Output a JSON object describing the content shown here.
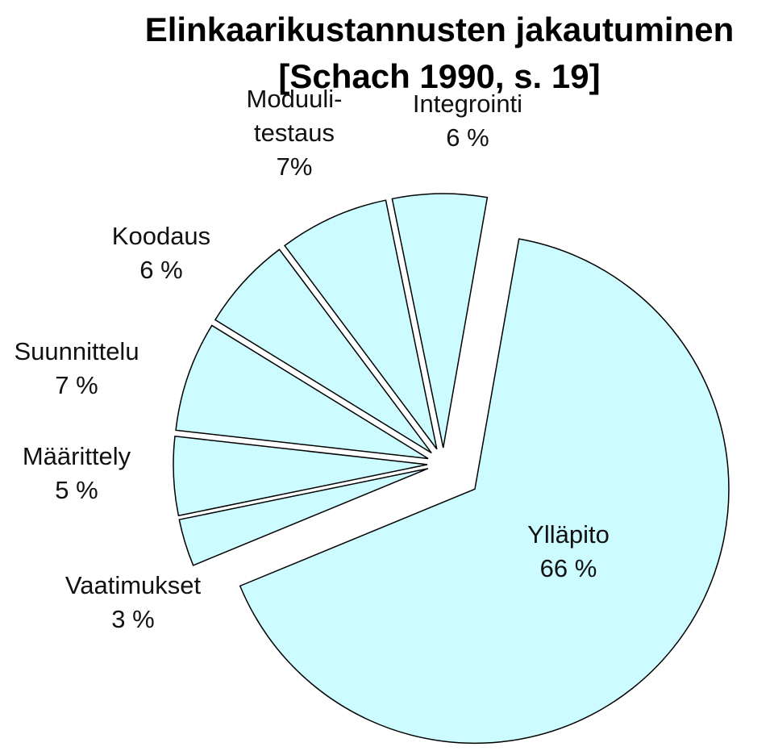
{
  "chart_data": {
    "type": "pie",
    "title": "Elinkaarikustannusten jakautuminen\n[Schach 1990, s. 19]",
    "categories": [
      "Ylläpito",
      "Vaatimukset",
      "Määrittely",
      "Suunnittelu",
      "Koodaus",
      "Moduuli-\ntestaus",
      "Integrointi"
    ],
    "values": [
      66,
      3,
      5,
      7,
      6,
      7,
      6
    ],
    "value_labels": [
      "66 %",
      "3 %",
      "5 %",
      "7 %",
      "6 %",
      "7%",
      "6 %"
    ],
    "color": "#ccfcff"
  }
}
